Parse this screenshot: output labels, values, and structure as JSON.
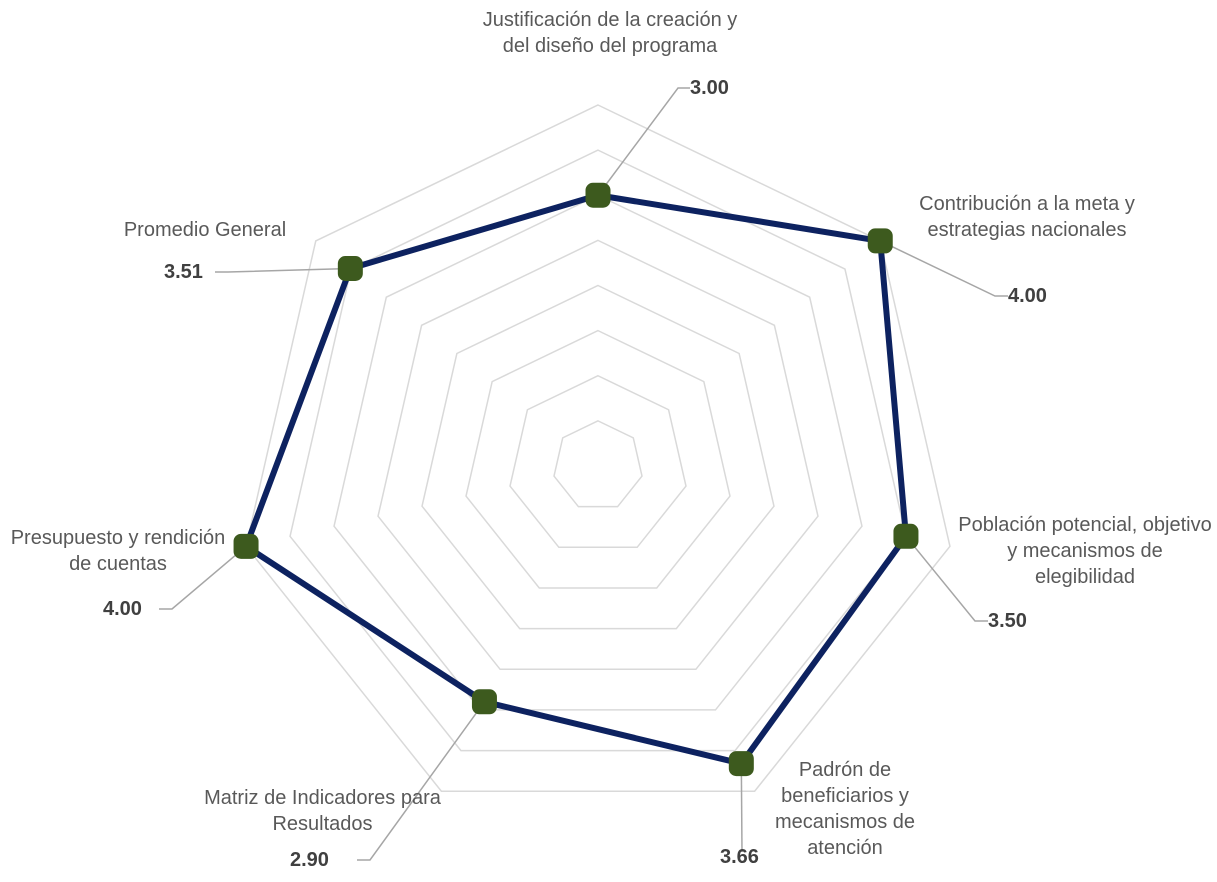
{
  "chart_data": {
    "type": "radar",
    "categories": [
      "Justificación de la creación y del diseño del programa",
      "Contribución a la meta y estrategias nacionales",
      "Población potencial, objetivo y mecanismos de elegibilidad",
      "Padrón de beneficiarios y mecanismos de atención",
      "Matriz de Indicadores para Resultados",
      "Presupuesto y rendición de cuentas",
      "Promedio General"
    ],
    "series": [
      {
        "color": "#0d2260",
        "marker_color": "#3d5a1e",
        "values": [
          3,
          4,
          3.5,
          3.66,
          2.9,
          4,
          3.51
        ],
        "value_labels": [
          "3.00",
          "4.00",
          "3.50",
          "3.66",
          "2.90",
          "4.00",
          "3.51"
        ]
      }
    ],
    "ylim": [
      0,
      4
    ],
    "yticks": [
      0.5,
      1,
      1.5,
      2,
      2.5,
      3,
      3.5,
      4
    ],
    "grid": true
  }
}
